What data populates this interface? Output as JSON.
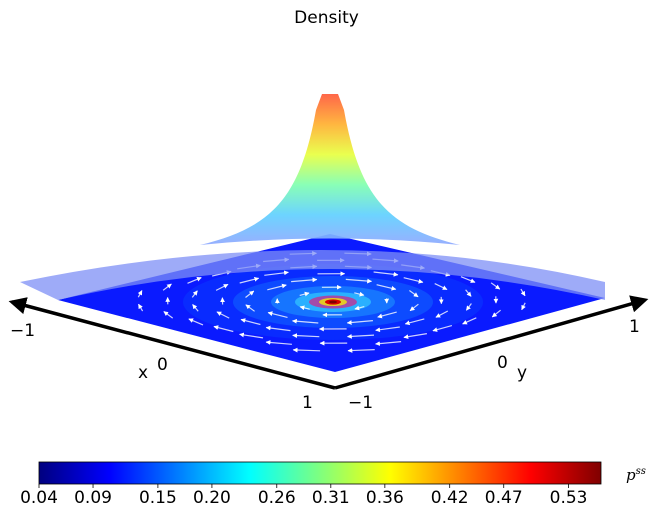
{
  "chart_data": {
    "type": "surface3d",
    "title": "Density",
    "x_axis": {
      "label": "x",
      "ticks": [
        "−1",
        "0",
        "1"
      ],
      "range": [
        -1,
        1
      ]
    },
    "y_axis": {
      "label": "y",
      "ticks": [
        "−1",
        "0",
        "1"
      ],
      "range": [
        -1,
        1
      ]
    },
    "surface": {
      "peak_value": 0.55,
      "peak_location": [
        0,
        0
      ],
      "base_value": 0.04,
      "colormap": "jet",
      "opacity": "semi-transparent"
    },
    "floor_heatmap": {
      "colormap": "jet",
      "center_value": 0.55,
      "edge_value": 0.04
    },
    "vector_field": {
      "type": "rotational",
      "direction": "counterclockwise",
      "arrow_color": "#ffffff"
    },
    "colorbar": {
      "label": "p",
      "label_superscript": "ss",
      "min": 0.04,
      "max": 0.56,
      "ticks": [
        "0.04",
        "0.09",
        "0.15",
        "0.20",
        "0.26",
        "0.31",
        "0.36",
        "0.42",
        "0.47",
        "0.53"
      ],
      "colors": [
        "#00007f",
        "#0000ff",
        "#007fff",
        "#00ffff",
        "#7fff7f",
        "#ffff00",
        "#ff7f00",
        "#ff0000",
        "#7f0000"
      ]
    }
  }
}
